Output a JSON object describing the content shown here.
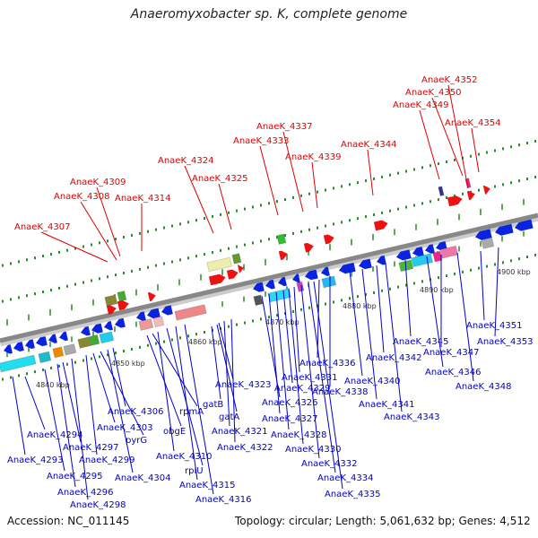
{
  "title": "Anaeromyxobacter sp. K, complete genome",
  "footer": {
    "accession": "Accession: NC_011145",
    "summary": "Topology: circular; Length: 5,061,632 bp; Genes: 4,512"
  },
  "scale_labels": [
    "4840 kbp",
    "4850 kbp",
    "4860 kbp",
    "4870 kbp",
    "4880 kbp",
    "4890 kbp",
    "4900 kbp"
  ],
  "colors": {
    "forward_label": "#dd0000",
    "reverse_label": "#0000cc",
    "backbone": "#888888",
    "tick": "#2a8a2a"
  },
  "forward_genes": [
    "AnaeK_4307",
    "AnaeK_4308",
    "AnaeK_4309",
    "AnaeK_4314",
    "AnaeK_4324",
    "AnaeK_4325",
    "AnaeK_4333",
    "AnaeK_4337",
    "AnaeK_4339",
    "AnaeK_4344",
    "AnaeK_4349",
    "AnaeK_4350",
    "AnaeK_4352",
    "AnaeK_4354"
  ],
  "reverse_genes": [
    "AnaeK_4293",
    "AnaeK_4294",
    "AnaeK_4295",
    "AnaeK_4296",
    "AnaeK_4297",
    "AnaeK_4298",
    "AnaeK_4299",
    "AnaeK_4303",
    "pyrG",
    "AnaeK_4304",
    "AnaeK_4306",
    "obgE",
    "rpmA",
    "AnaeK_4310",
    "rplU",
    "AnaeK_4315",
    "AnaeK_4316",
    "gatB",
    "gatA",
    "AnaeK_4321",
    "AnaeK_4322",
    "AnaeK_4323",
    "AnaeK_4326",
    "AnaeK_4327",
    "AnaeK_4328",
    "AnaeK_4329",
    "AnaeK_4330",
    "AnaeK_4331",
    "AnaeK_4332",
    "AnaeK_4334",
    "AnaeK_4335",
    "AnaeK_4336",
    "AnaeK_4338",
    "AnaeK_4340",
    "AnaeK_4341",
    "AnaeK_4342",
    "AnaeK_4343",
    "AnaeK_4345",
    "AnaeK_4346",
    "AnaeK_4347",
    "AnaeK_4348",
    "AnaeK_4351",
    "AnaeK_4353"
  ]
}
